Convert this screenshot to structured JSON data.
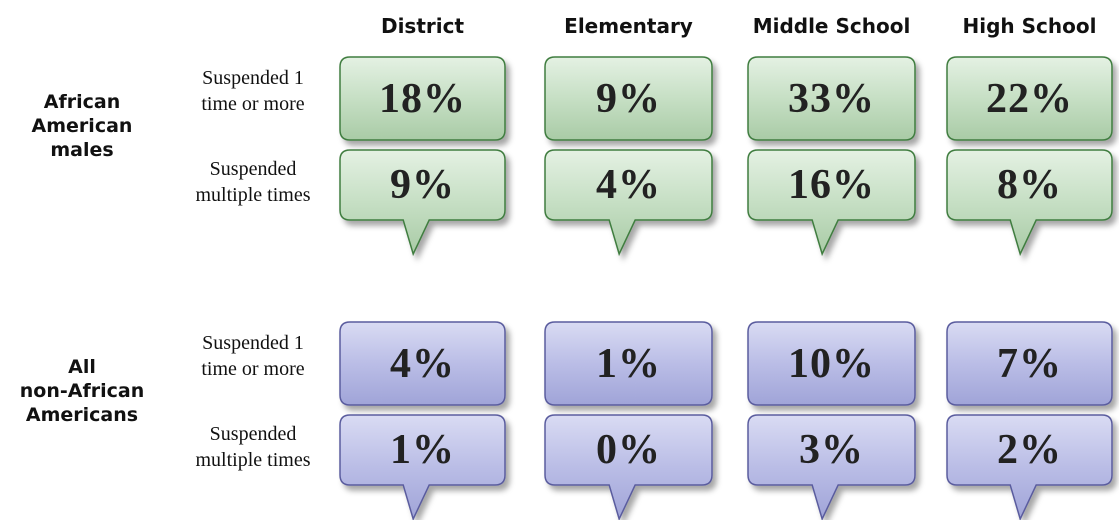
{
  "columns": [
    "District",
    "Elementary",
    "Middle School",
    "High School"
  ],
  "groups": [
    {
      "label_lines": [
        "African",
        "American",
        "males"
      ],
      "theme": "green",
      "rows": [
        {
          "label_lines": [
            "Suspended 1",
            "time or more"
          ],
          "cells": [
            "18%",
            "9%",
            "33%",
            "22%"
          ]
        },
        {
          "label_lines": [
            "Suspended",
            "multiple times"
          ],
          "cells": [
            "9%",
            "4%",
            "16%",
            "8%"
          ]
        }
      ]
    },
    {
      "label_lines": [
        "All",
        "non-African",
        "Americans"
      ],
      "theme": "purple",
      "rows": [
        {
          "label_lines": [
            "Suspended 1",
            "time or more"
          ],
          "cells": [
            "4%",
            "1%",
            "10%",
            "7%"
          ]
        },
        {
          "label_lines": [
            "Suspended",
            "multiple times"
          ],
          "cells": [
            "1%",
            "0%",
            "3%",
            "2%"
          ]
        }
      ]
    }
  ]
}
